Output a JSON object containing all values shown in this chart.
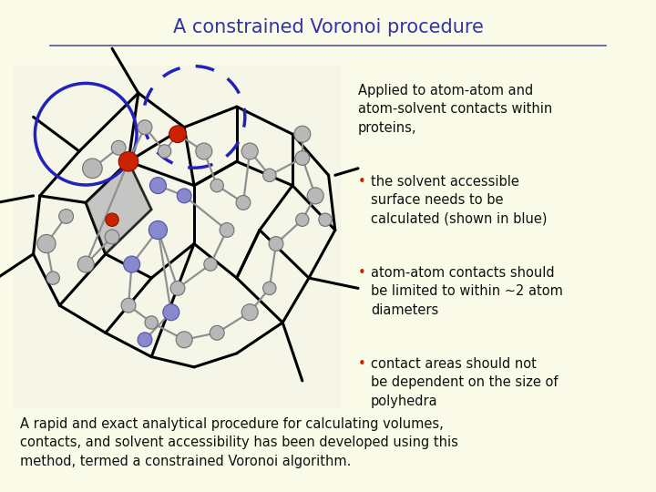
{
  "background_color": "#FAFAE8",
  "title": "A constrained Voronoi procedure",
  "title_color": "#3333AA",
  "title_fontsize": 15,
  "line_color": "#555599",
  "bullet_color": "#CC2200",
  "text_color": "#111111",
  "intro_text": "Applied to atom-atom and\natom-solvent contacts within\nproteins,",
  "bullets": [
    "the solvent accessible\nsurface needs to be\ncalculated (shown in blue)",
    "atom-atom contacts should\nbe limited to within ∼2 atom\ndiameters",
    "contact areas should not\nbe dependent on the size of\npolyhedra"
  ],
  "footer_text": "A rapid and exact analytical procedure for calculating volumes,\ncontacts, and solvent accessibility has been developed using this\nmethod, termed a constrained Voronoi algorithm.",
  "text_fontsize": 10.5,
  "footer_fontsize": 10.5
}
